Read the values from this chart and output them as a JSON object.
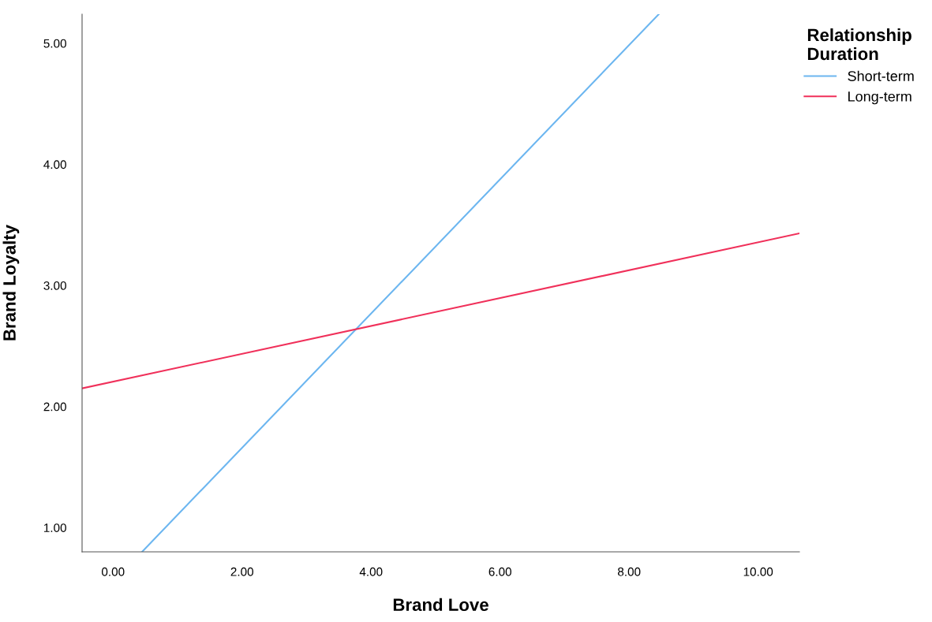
{
  "chart_data": {
    "type": "line",
    "xlabel": "Brand Love",
    "ylabel": "Brand Loyalty",
    "legend_title": "Relationship\nDuration",
    "xlim": [
      -0.48,
      10.64
    ],
    "ylim": [
      0.8,
      5.24
    ],
    "xticks": [
      {
        "value": 0,
        "label": "0.00"
      },
      {
        "value": 2,
        "label": "2.00"
      },
      {
        "value": 4,
        "label": "4.00"
      },
      {
        "value": 6,
        "label": "6.00"
      },
      {
        "value": 8,
        "label": "8.00"
      },
      {
        "value": 10,
        "label": "10.00"
      }
    ],
    "yticks": [
      {
        "value": 1,
        "label": "1.00"
      },
      {
        "value": 2,
        "label": "2.00"
      },
      {
        "value": 3,
        "label": "3.00"
      },
      {
        "value": 4,
        "label": "4.00"
      },
      {
        "value": 5,
        "label": "5.00"
      }
    ],
    "legend": "top right",
    "grid": false,
    "marker": "none",
    "line_style": "solid",
    "series": [
      {
        "name": "Short-term",
        "color": "#6cb6f0",
        "x": [
          0.45,
          8.46
        ],
        "values": [
          0.8,
          5.24
        ]
      },
      {
        "name": "Long-term",
        "color": "#f0305a",
        "x": [
          -0.48,
          10.64
        ],
        "values": [
          2.15,
          3.43
        ]
      }
    ]
  }
}
